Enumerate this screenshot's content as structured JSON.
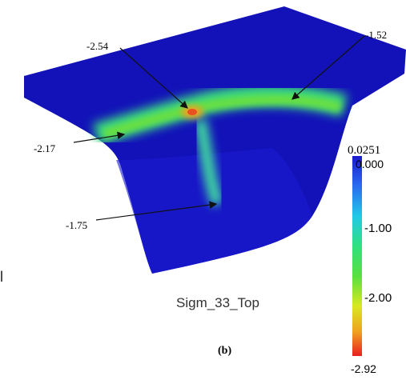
{
  "figure": {
    "annotations": [
      "-2.54",
      "-1.52",
      "-2.17",
      "-1.75"
    ],
    "field_name": "Sigm_33_Top",
    "caption": "(b)",
    "side_fragment": "l",
    "colorbar": {
      "max_label": "0.0251",
      "ticks": [
        "0.000",
        "-1.00",
        "-2.00"
      ],
      "min_label": "-2.92"
    }
  }
}
